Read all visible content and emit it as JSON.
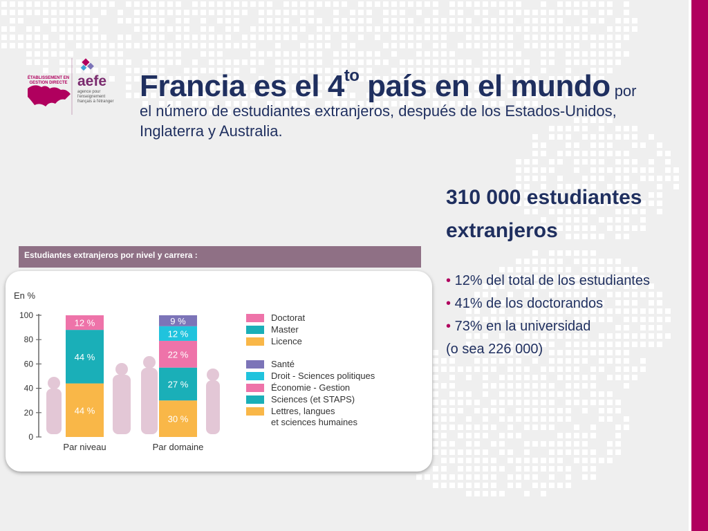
{
  "logo": {
    "badge": "ÉTABLISSEMENT EN GESTION DIRECTE",
    "name": "aefe",
    "subtitle": "agence pour l'enseignement français à l'étranger"
  },
  "title": {
    "main": "Francia es el 4",
    "sup": "to",
    "main_end": " país en el mundo",
    "tail_small": " por",
    "rest": "el número de estudiantes extranjeros, después de los Estados-Unidos, Inglaterra y Australia."
  },
  "headline": "310 000 estudiantes extranjeros",
  "bullets": [
    "12% del total de los estudiantes",
    "41% de los doctorandos",
    "73% en la universidad"
  ],
  "bullet_note": "(o sea 226 000)",
  "banner": "Estudiantes extranjeros por nivel y carrera :",
  "colors": {
    "accent": "#b0005e",
    "title": "#1f2f5f",
    "banner": "#8f7085"
  },
  "chart_data": {
    "type": "bar",
    "stacked": true,
    "ylabel": "En %",
    "ylim": [
      0,
      100
    ],
    "yticks": [
      0,
      20,
      40,
      60,
      80,
      100
    ],
    "categories": [
      "Par niveau",
      "Par domaine"
    ],
    "series": [
      {
        "name": "Licence",
        "color": "#f9b748",
        "values": [
          44,
          null
        ]
      },
      {
        "name": "Master",
        "color": "#1aafb8",
        "values": [
          44,
          null
        ]
      },
      {
        "name": "Doctorat",
        "color": "#ee73a9",
        "values": [
          12,
          null
        ]
      },
      {
        "name": "Lettres, langues et sciences humaines",
        "color": "#f9b748",
        "values": [
          null,
          30
        ]
      },
      {
        "name": "Sciences (et STAPS)",
        "color": "#1aafb8",
        "values": [
          null,
          27
        ]
      },
      {
        "name": "Économie - Gestion",
        "color": "#ee73a9",
        "values": [
          null,
          22
        ]
      },
      {
        "name": "Droit - Sciences politiques",
        "color": "#20c3dd",
        "values": [
          null,
          12
        ]
      },
      {
        "name": "Santé",
        "color": "#7c74b8",
        "values": [
          null,
          9
        ]
      }
    ],
    "segment_labels": [
      [
        "44 %",
        "44 %",
        "12 %"
      ],
      [
        "30 %",
        "27 %",
        "22 %",
        "12 %",
        "9 %"
      ]
    ],
    "legend_groups": [
      [
        "Doctorat",
        "Master",
        "Licence"
      ],
      [
        "Santé",
        "Droit - Sciences politiques",
        "Économie - Gestion",
        "Sciences (et STAPS)",
        "Lettres, langues et sciences humaines"
      ]
    ],
    "legend_display": {
      "Lettres, langues et sciences humaines": [
        "Lettres, langues",
        "et sciences humaines"
      ]
    }
  }
}
